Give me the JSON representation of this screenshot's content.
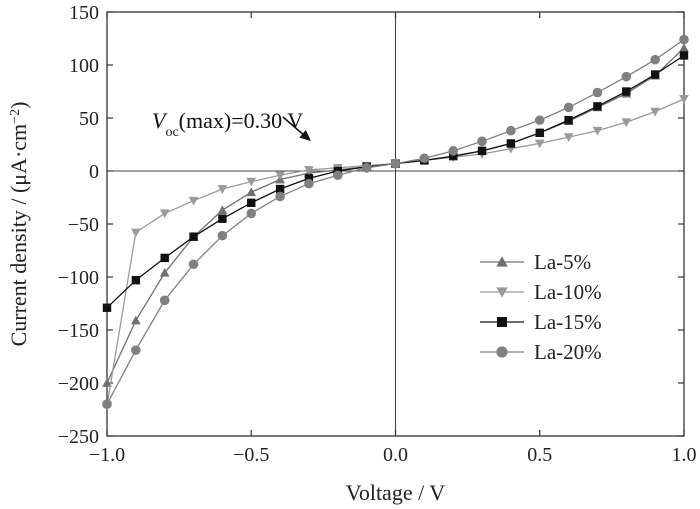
{
  "chart_data": {
    "type": "line",
    "xlabel": "Voltage / V",
    "ylabel_prefix": "Current density / (μA·cm",
    "ylabel_exp": "−2",
    "ylabel_suffix": ")",
    "xlim": [
      -1.0,
      1.0
    ],
    "ylim": [
      -250,
      150
    ],
    "xticks": [
      -1.0,
      -0.5,
      0.0,
      0.5,
      1.0
    ],
    "xtick_labels": [
      "−1.0",
      "−0.5",
      "0.0",
      "0.5",
      "1.0"
    ],
    "yticks": [
      -250,
      -200,
      -150,
      -100,
      -50,
      0,
      50,
      100,
      150
    ],
    "ytick_labels": [
      "−250",
      "−200",
      "−150",
      "−100",
      "−50",
      "0",
      "50",
      "100",
      "150"
    ],
    "grid": false,
    "legend_position": "lower-right",
    "annotation": {
      "text_v": "V",
      "text_sub": "oc",
      "text_rest": "(max)=0.30 V",
      "x": -0.3,
      "y": 0
    },
    "x": [
      -1.0,
      -0.9,
      -0.8,
      -0.7,
      -0.6,
      -0.5,
      -0.4,
      -0.3,
      -0.2,
      -0.1,
      0.0,
      0.1,
      0.2,
      0.3,
      0.4,
      0.5,
      0.6,
      0.7,
      0.8,
      0.9,
      1.0
    ],
    "series": [
      {
        "name": "La-5%",
        "marker": "triangle-up",
        "color": "#707070",
        "values": [
          -200,
          -141,
          -96,
          -62,
          -37,
          -20,
          -8,
          -2,
          1,
          4,
          7,
          10,
          14,
          19,
          26,
          36,
          47,
          60,
          73,
          90,
          116
        ]
      },
      {
        "name": "La-10%",
        "marker": "triangle-down",
        "color": "#9a9a9a",
        "values": [
          -221,
          -58,
          -40,
          -28,
          -17,
          -10,
          -4,
          1,
          3,
          5,
          7,
          10,
          13,
          16,
          21,
          26,
          32,
          38,
          46,
          56,
          68
        ]
      },
      {
        "name": "La-15%",
        "marker": "square",
        "color": "#111111",
        "values": [
          -129,
          -103,
          -82,
          -62,
          -45,
          -30,
          -17,
          -7,
          0,
          4,
          7,
          10,
          14,
          19,
          26,
          36,
          48,
          61,
          75,
          91,
          109
        ]
      },
      {
        "name": "La-20%",
        "marker": "circle",
        "color": "#808080",
        "values": [
          -220,
          -169,
          -122,
          -88,
          -61,
          -40,
          -24,
          -12,
          -4,
          3,
          7,
          12,
          19,
          28,
          38,
          48,
          60,
          74,
          89,
          105,
          124
        ]
      }
    ]
  }
}
